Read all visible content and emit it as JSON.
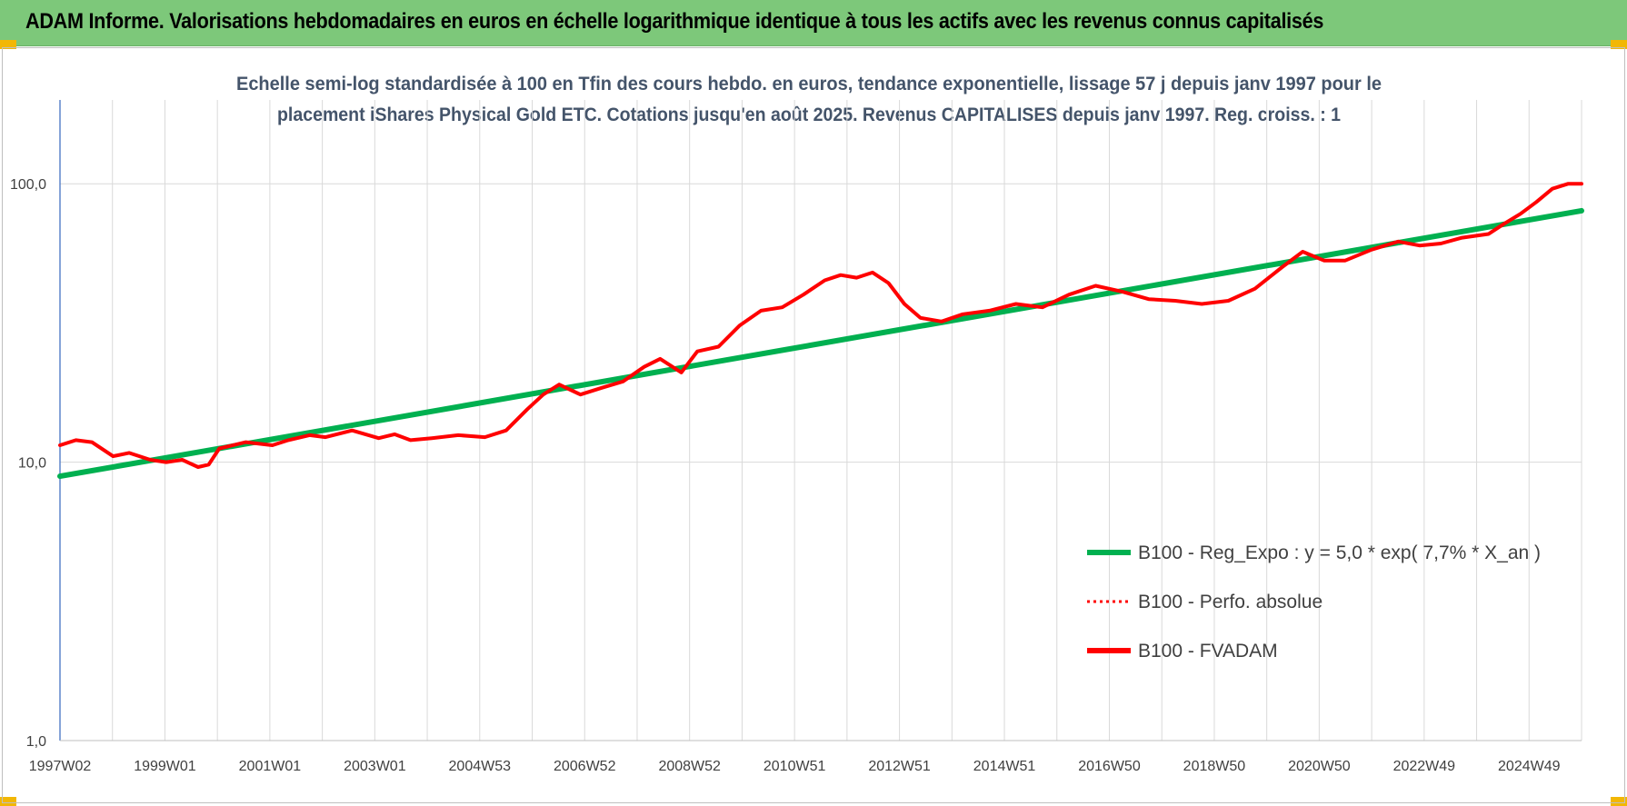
{
  "header": {
    "title": "ADAM Informe. Valorisations hebdomadaires en euros en échelle logarithmique identique à tous les actifs avec les revenus connus capitalisés"
  },
  "chart_data": {
    "type": "line",
    "subtitle_line1": "Echelle semi-log standardisée à 100 en Tfin des cours hebdo. en euros, tendance exponentielle, lissage 57 j depuis janv 1997 pour le",
    "subtitle_line2": "placement iShares Physical Gold ETC. Cotations jusqu'en août 2025. Revenus CAPITALISES depuis janv 1997. Reg. croiss. : 1",
    "y_scale": "log",
    "ylim": [
      1,
      200
    ],
    "y_ticks": [
      "1,0",
      "10,0",
      "100,0"
    ],
    "x_ticks": [
      "1997W02",
      "1999W01",
      "2001W01",
      "2003W01",
      "2004W53",
      "2006W52",
      "2008W52",
      "2010W51",
      "2012W51",
      "2014W51",
      "2016W50",
      "2018W50",
      "2020W50",
      "2022W49",
      "2024W49"
    ],
    "xlim": [
      1997.0,
      2025.65
    ],
    "grid": true,
    "legend_position": "bottom-right",
    "series": [
      {
        "name": "B100 - Reg_Expo : y = 5,0 * exp( 7,7% *  X_an )",
        "color": "#00b050",
        "style": "solid-thick",
        "x": [
          1997.0,
          2025.65
        ],
        "values": [
          8.9,
          80.0
        ]
      },
      {
        "name": "B100 - Perfo. absolue",
        "color": "#ff0000",
        "style": "dotted",
        "x": [],
        "values": []
      },
      {
        "name": "B100 - FVADAM",
        "color": "#ff0000",
        "style": "solid-thick",
        "x": [
          1997.0,
          1997.3,
          1997.6,
          1998.0,
          1998.3,
          1998.7,
          1999.0,
          1999.3,
          1999.6,
          1999.8,
          2000.0,
          2000.5,
          2001.0,
          2001.3,
          2001.7,
          2002.0,
          2002.5,
          2003.0,
          2003.3,
          2003.6,
          2004.0,
          2004.5,
          2005.0,
          2005.4,
          2005.8,
          2006.1,
          2006.4,
          2006.8,
          2007.2,
          2007.6,
          2008.0,
          2008.3,
          2008.7,
          2009.0,
          2009.4,
          2009.8,
          2010.2,
          2010.6,
          2011.0,
          2011.4,
          2011.7,
          2012.0,
          2012.3,
          2012.6,
          2012.9,
          2013.2,
          2013.6,
          2014.0,
          2014.5,
          2015.0,
          2015.5,
          2016.0,
          2016.5,
          2017.0,
          2017.5,
          2018.0,
          2018.5,
          2019.0,
          2019.5,
          2020.0,
          2020.4,
          2020.8,
          2021.2,
          2021.7,
          2022.2,
          2022.6,
          2023.0,
          2023.4,
          2023.9,
          2024.2,
          2024.5,
          2024.8,
          2025.1,
          2025.4,
          2025.65
        ],
        "values": [
          11.5,
          12.0,
          11.8,
          10.5,
          10.8,
          10.2,
          10.0,
          10.2,
          9.6,
          9.8,
          11.2,
          11.8,
          11.5,
          12.0,
          12.5,
          12.3,
          13.0,
          12.2,
          12.6,
          12.0,
          12.2,
          12.5,
          12.3,
          13.0,
          15.5,
          17.5,
          19.0,
          17.5,
          18.5,
          19.5,
          22.0,
          23.5,
          21.0,
          25.0,
          26.0,
          31.0,
          35.0,
          36.0,
          40.0,
          45.0,
          47.0,
          46.0,
          48.0,
          44.0,
          37.0,
          33.0,
          32.0,
          34.0,
          35.0,
          37.0,
          36.0,
          40.0,
          43.0,
          41.0,
          38.5,
          38.0,
          37.0,
          38.0,
          42.0,
          50.0,
          57.0,
          53.0,
          53.0,
          58.0,
          62.0,
          60.0,
          61.0,
          64.0,
          66.0,
          72.0,
          78.0,
          86.0,
          96.0,
          100.0,
          100.0
        ]
      }
    ]
  }
}
